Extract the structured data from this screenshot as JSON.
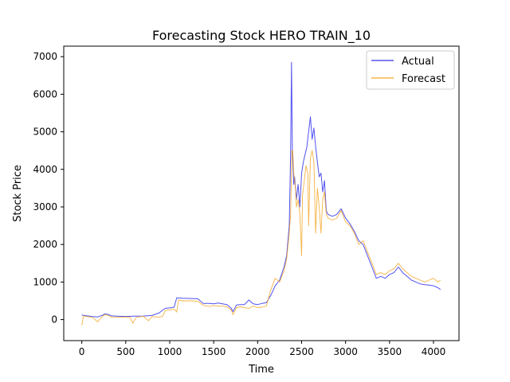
{
  "chart_data": {
    "type": "line",
    "title": "Forecasting Stock HERO TRAIN_10",
    "xlabel": "Time",
    "ylabel": "Stock Price",
    "xlim": [
      -205,
      4290
    ],
    "ylim": [
      -560,
      7280
    ],
    "xticks": [
      0,
      500,
      1000,
      1500,
      2000,
      2500,
      3000,
      3500,
      4000
    ],
    "yticks": [
      0,
      1000,
      2000,
      3000,
      4000,
      5000,
      6000,
      7000
    ],
    "grid": false,
    "legend": "top-right",
    "series": [
      {
        "name": "Actual",
        "color": "#3333ee",
        "points": [
          [
            0,
            120
          ],
          [
            60,
            100
          ],
          [
            120,
            80
          ],
          [
            180,
            70
          ],
          [
            230,
            110
          ],
          [
            260,
            150
          ],
          [
            300,
            140
          ],
          [
            340,
            100
          ],
          [
            400,
            90
          ],
          [
            500,
            85
          ],
          [
            600,
            90
          ],
          [
            700,
            95
          ],
          [
            800,
            110
          ],
          [
            880,
            180
          ],
          [
            950,
            300
          ],
          [
            1000,
            310
          ],
          [
            1050,
            330
          ],
          [
            1080,
            580
          ],
          [
            1150,
            570
          ],
          [
            1250,
            560
          ],
          [
            1320,
            555
          ],
          [
            1380,
            430
          ],
          [
            1450,
            430
          ],
          [
            1500,
            420
          ],
          [
            1550,
            440
          ],
          [
            1600,
            420
          ],
          [
            1650,
            400
          ],
          [
            1700,
            300
          ],
          [
            1720,
            210
          ],
          [
            1760,
            390
          ],
          [
            1800,
            400
          ],
          [
            1850,
            400
          ],
          [
            1900,
            520
          ],
          [
            1950,
            420
          ],
          [
            2000,
            400
          ],
          [
            2050,
            430
          ],
          [
            2100,
            450
          ],
          [
            2150,
            650
          ],
          [
            2200,
            900
          ],
          [
            2250,
            1050
          ],
          [
            2300,
            1400
          ],
          [
            2330,
            1700
          ],
          [
            2360,
            2500
          ],
          [
            2375,
            4400
          ],
          [
            2385,
            6850
          ],
          [
            2395,
            4500
          ],
          [
            2410,
            3600
          ],
          [
            2420,
            3800
          ],
          [
            2440,
            3200
          ],
          [
            2460,
            3600
          ],
          [
            2480,
            3000
          ],
          [
            2500,
            3900
          ],
          [
            2520,
            4200
          ],
          [
            2540,
            4400
          ],
          [
            2560,
            4600
          ],
          [
            2580,
            5000
          ],
          [
            2600,
            5400
          ],
          [
            2620,
            4800
          ],
          [
            2640,
            5100
          ],
          [
            2660,
            4600
          ],
          [
            2680,
            4200
          ],
          [
            2700,
            3800
          ],
          [
            2720,
            3900
          ],
          [
            2740,
            3400
          ],
          [
            2760,
            3700
          ],
          [
            2780,
            2900
          ],
          [
            2800,
            2800
          ],
          [
            2850,
            2750
          ],
          [
            2900,
            2800
          ],
          [
            2950,
            2950
          ],
          [
            3000,
            2700
          ],
          [
            3050,
            2550
          ],
          [
            3100,
            2350
          ],
          [
            3150,
            2100
          ],
          [
            3200,
            2000
          ],
          [
            3250,
            1700
          ],
          [
            3300,
            1400
          ],
          [
            3350,
            1100
          ],
          [
            3400,
            1150
          ],
          [
            3450,
            1100
          ],
          [
            3500,
            1200
          ],
          [
            3550,
            1250
          ],
          [
            3600,
            1400
          ],
          [
            3650,
            1250
          ],
          [
            3700,
            1150
          ],
          [
            3750,
            1050
          ],
          [
            3800,
            1000
          ],
          [
            3850,
            950
          ],
          [
            3900,
            930
          ],
          [
            3950,
            920
          ],
          [
            4000,
            900
          ],
          [
            4050,
            850
          ],
          [
            4080,
            800
          ]
        ]
      },
      {
        "name": "Forecast",
        "color": "#f5a623",
        "points": [
          [
            0,
            -150
          ],
          [
            20,
            100
          ],
          [
            60,
            80
          ],
          [
            120,
            60
          ],
          [
            180,
            -60
          ],
          [
            230,
            70
          ],
          [
            260,
            130
          ],
          [
            300,
            110
          ],
          [
            340,
            60
          ],
          [
            400,
            60
          ],
          [
            500,
            70
          ],
          [
            550,
            60
          ],
          [
            580,
            -100
          ],
          [
            620,
            60
          ],
          [
            700,
            90
          ],
          [
            760,
            -30
          ],
          [
            800,
            80
          ],
          [
            880,
            60
          ],
          [
            920,
            90
          ],
          [
            950,
            240
          ],
          [
            1000,
            260
          ],
          [
            1050,
            280
          ],
          [
            1080,
            200
          ],
          [
            1100,
            520
          ],
          [
            1150,
            500
          ],
          [
            1250,
            500
          ],
          [
            1320,
            490
          ],
          [
            1380,
            380
          ],
          [
            1450,
            350
          ],
          [
            1500,
            370
          ],
          [
            1550,
            360
          ],
          [
            1600,
            360
          ],
          [
            1650,
            340
          ],
          [
            1700,
            260
          ],
          [
            1720,
            130
          ],
          [
            1760,
            320
          ],
          [
            1800,
            340
          ],
          [
            1850,
            320
          ],
          [
            1900,
            300
          ],
          [
            1950,
            360
          ],
          [
            2000,
            320
          ],
          [
            2050,
            330
          ],
          [
            2100,
            360
          ],
          [
            2150,
            800
          ],
          [
            2200,
            1100
          ],
          [
            2250,
            1000
          ],
          [
            2300,
            1300
          ],
          [
            2330,
            1600
          ],
          [
            2360,
            2300
          ],
          [
            2375,
            2800
          ],
          [
            2390,
            4500
          ],
          [
            2400,
            4500
          ],
          [
            2410,
            3900
          ],
          [
            2430,
            3500
          ],
          [
            2440,
            3000
          ],
          [
            2460,
            3200
          ],
          [
            2480,
            2800
          ],
          [
            2500,
            1700
          ],
          [
            2510,
            3300
          ],
          [
            2530,
            3700
          ],
          [
            2550,
            4100
          ],
          [
            2570,
            3900
          ],
          [
            2580,
            2500
          ],
          [
            2600,
            4300
          ],
          [
            2620,
            4500
          ],
          [
            2640,
            4200
          ],
          [
            2660,
            2300
          ],
          [
            2680,
            3500
          ],
          [
            2700,
            3000
          ],
          [
            2720,
            2300
          ],
          [
            2740,
            3200
          ],
          [
            2760,
            3400
          ],
          [
            2780,
            2800
          ],
          [
            2800,
            2700
          ],
          [
            2850,
            2650
          ],
          [
            2900,
            2700
          ],
          [
            2950,
            2900
          ],
          [
            3000,
            2600
          ],
          [
            3050,
            2500
          ],
          [
            3100,
            2300
          ],
          [
            3150,
            2000
          ],
          [
            3200,
            2100
          ],
          [
            3250,
            1800
          ],
          [
            3300,
            1500
          ],
          [
            3350,
            1200
          ],
          [
            3400,
            1250
          ],
          [
            3450,
            1200
          ],
          [
            3500,
            1300
          ],
          [
            3550,
            1350
          ],
          [
            3600,
            1500
          ],
          [
            3650,
            1350
          ],
          [
            3700,
            1250
          ],
          [
            3750,
            1150
          ],
          [
            3800,
            1100
          ],
          [
            3850,
            1050
          ],
          [
            3900,
            1000
          ],
          [
            3950,
            1050
          ],
          [
            4000,
            1100
          ],
          [
            4050,
            1000
          ],
          [
            4080,
            1050
          ]
        ]
      }
    ]
  }
}
